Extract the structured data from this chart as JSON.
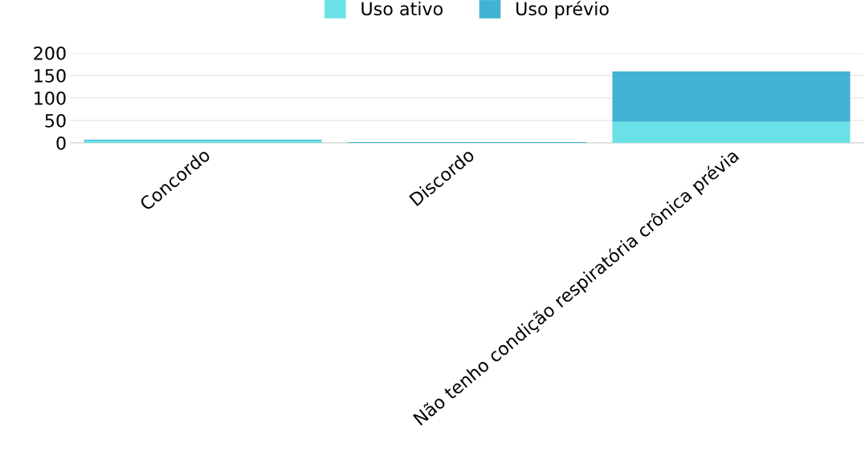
{
  "chart_data": {
    "type": "bar",
    "stacked": true,
    "categories": [
      "Concordo",
      "Discordo",
      "Não tenho condição respiratória crônica prévia"
    ],
    "series": [
      {
        "name": "Uso ativo",
        "color": "#6ae1e6",
        "values": [
          5,
          0,
          47
        ]
      },
      {
        "name": "Uso prévio",
        "color": "#42b3d2",
        "values": [
          2,
          2,
          112
        ]
      }
    ],
    "ylim": [
      0,
      200
    ],
    "yticks": [
      0,
      50,
      100,
      150,
      200
    ],
    "grid": "y",
    "legend": "top"
  }
}
